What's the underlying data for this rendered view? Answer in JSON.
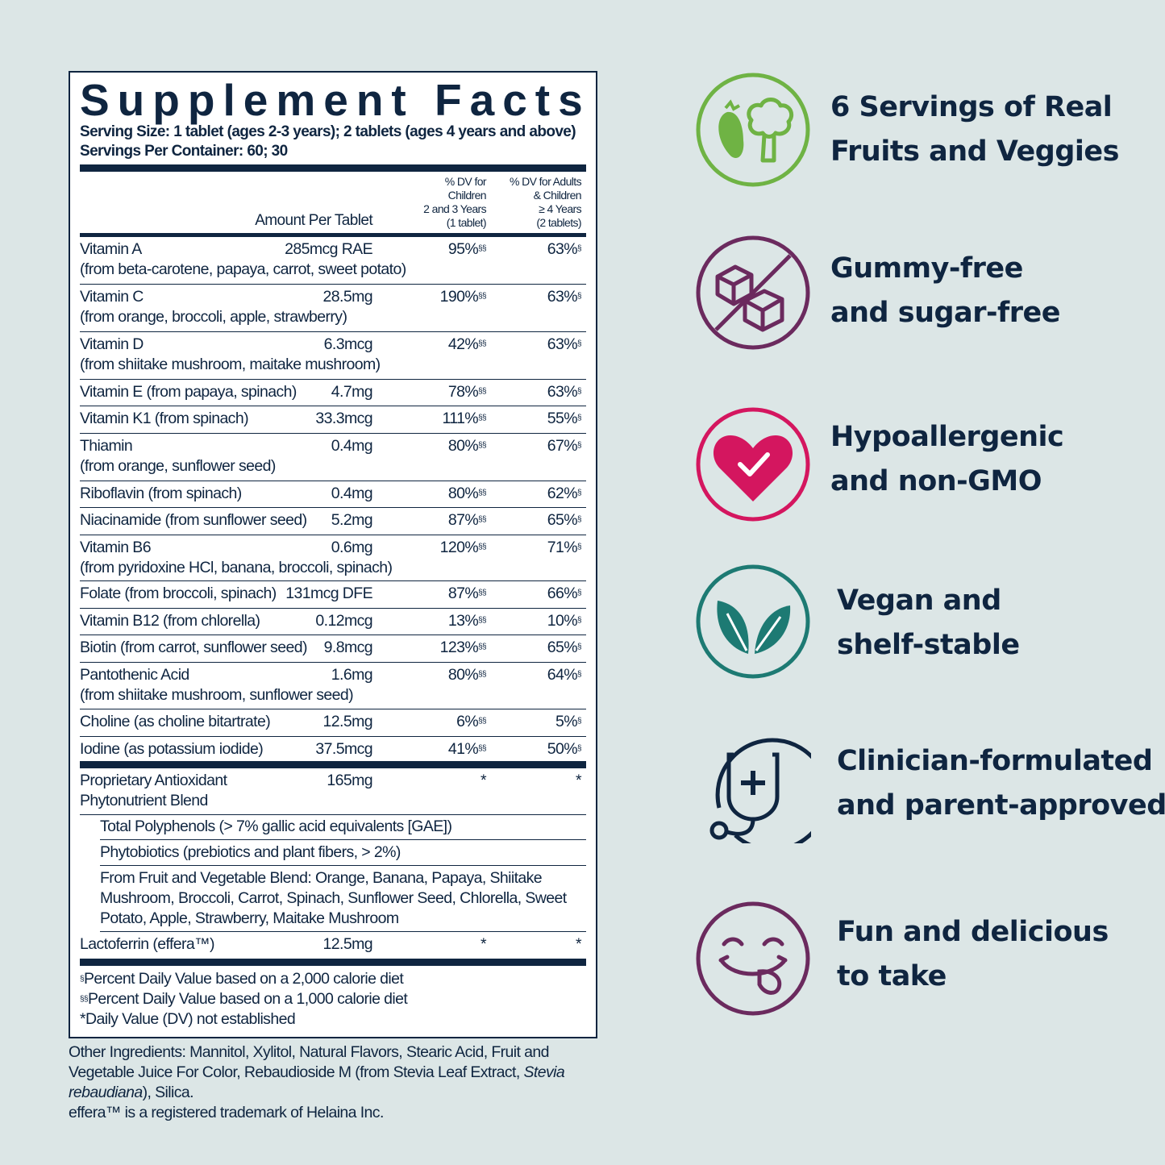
{
  "facts": {
    "title": "Supplement Facts",
    "serving_size": "Serving Size: 1 tablet (ages 2-3 years); 2 tablets (ages 4 years and above)",
    "servings_per_container": "Servings Per Container: 60; 30",
    "col_amount": "Amount Per Tablet",
    "col_dv_children": [
      "% DV for",
      "Children",
      "2 and 3 Years",
      "(1 tablet)"
    ],
    "col_dv_adults": [
      "% DV for Adults",
      "& Children",
      "≥ 4 Years",
      "(2 tablets)"
    ],
    "rows": [
      {
        "name": "Vitamin A",
        "source": "(from beta-carotene, papaya, carrot, sweet potato)",
        "amount": "285mcg RAE",
        "dv_children": "95%",
        "dv_adults": "63%"
      },
      {
        "name": "Vitamin C",
        "source": "(from orange, broccoli, apple, strawberry)",
        "amount": "28.5mg",
        "dv_children": "190%",
        "dv_adults": "63%"
      },
      {
        "name": "Vitamin D",
        "source": "(from shiitake mushroom, maitake mushroom)",
        "amount": "6.3mcg",
        "dv_children": "42%",
        "dv_adults": "63%"
      },
      {
        "name": "Vitamin E (from papaya, spinach)",
        "source": "",
        "amount": "4.7mg",
        "dv_children": "78%",
        "dv_adults": "63%"
      },
      {
        "name": "Vitamin K1 (from spinach)",
        "source": "",
        "amount": "33.3mcg",
        "dv_children": "111%",
        "dv_adults": "55%"
      },
      {
        "name": "Thiamin",
        "source": "(from orange, sunflower seed)",
        "amount": "0.4mg",
        "dv_children": "80%",
        "dv_adults": "67%"
      },
      {
        "name": "Riboflavin (from spinach)",
        "source": "",
        "amount": "0.4mg",
        "dv_children": "80%",
        "dv_adults": "62%"
      },
      {
        "name": "Niacinamide (from sunflower seed)",
        "source": "",
        "amount": "5.2mg",
        "dv_children": "87%",
        "dv_adults": "65%"
      },
      {
        "name": "Vitamin B6",
        "source": "(from pyridoxine HCl, banana, broccoli, spinach)",
        "amount": "0.6mg",
        "dv_children": "120%",
        "dv_adults": "71%"
      },
      {
        "name": "Folate (from broccoli, spinach)",
        "source": "",
        "amount": "131mcg DFE",
        "dv_children": "87%",
        "dv_adults": "66%"
      },
      {
        "name": "Vitamin B12 (from chlorella)",
        "source": "",
        "amount": "0.12mcg",
        "dv_children": "13%",
        "dv_adults": "10%"
      },
      {
        "name": "Biotin (from carrot, sunflower seed)",
        "source": "",
        "amount": "9.8mcg",
        "dv_children": "123%",
        "dv_adults": "65%"
      },
      {
        "name": "Pantothenic Acid",
        "source": "(from shiitake mushroom, sunflower seed)",
        "amount": "1.6mg",
        "dv_children": "80%",
        "dv_adults": "64%"
      },
      {
        "name": "Choline (as choline bitartrate)",
        "source": "",
        "amount": "12.5mg",
        "dv_children": "6%",
        "dv_adults": "5%"
      },
      {
        "name": "Iodine (as potassium iodide)",
        "source": "",
        "amount": "37.5mcg",
        "dv_children": "41%",
        "dv_adults": "50%"
      }
    ],
    "dv_children_mark": "§§",
    "dv_adults_mark": "§",
    "blend": {
      "name_line1": "Proprietary Antioxidant",
      "name_line2": "Phytonutrient Blend",
      "amount": "165mg",
      "dv_children": "*",
      "dv_adults": "*",
      "sub1": "Total Polyphenols (> 7% gallic acid equivalents [GAE])",
      "sub2": "Phytobiotics (prebiotics and plant fibers, > 2%)",
      "sub3": "From Fruit and Vegetable Blend: Orange, Banana, Papaya, Shiitake Mushroom, Broccoli, Carrot, Spinach, Sunflower Seed, Chlorella, Sweet Potato, Apple, Strawberry, Maitake Mushroom"
    },
    "lactoferrin": {
      "name": "Lactoferrin (effera™)",
      "amount": "12.5mg",
      "dv_children": "*",
      "dv_adults": "*"
    },
    "footnote_1_mark": "§",
    "footnote_1": "Percent Daily Value based on a 2,000 calorie diet",
    "footnote_2_mark": "§§",
    "footnote_2": "Percent Daily Value based on a 1,000 calorie diet",
    "footnote_3": "*Daily Value (DV) not established"
  },
  "other_ingredients": {
    "text_a": "Other Ingredients: Mannitol, Xylitol, Natural Flavors, Stearic Acid, Fruit and Vegetable Juice For Color, Rebaudioside M (from Stevia Leaf Extract, ",
    "text_italic": "Stevia rebaudiana",
    "text_b": "), Silica.",
    "trademark": "effera™ is a registered trademark of Helaina Inc."
  },
  "features": [
    {
      "line1": "6 Servings of Real",
      "line2": "Fruits and Veggies",
      "color": "#6fb344",
      "icon": "fruit-veggie-icon"
    },
    {
      "line1": "Gummy-free",
      "line2": "and sugar-free",
      "color": "#6b2a5e",
      "icon": "no-sugar-cubes-icon"
    },
    {
      "line1": "Hypoallergenic",
      "line2": "and non-GMO",
      "color": "#d4165f",
      "icon": "heart-check-icon"
    },
    {
      "line1": "Vegan and",
      "line2": "shelf-stable",
      "color": "#1d7a73",
      "icon": "leaves-icon"
    },
    {
      "line1": "Clinician-formulated",
      "line2": "and parent-approved",
      "color": "#0f2540",
      "icon": "stethoscope-icon"
    },
    {
      "line1": "Fun and delicious",
      "line2": "to take",
      "color": "#6b2a5e",
      "icon": "yummy-face-icon"
    }
  ]
}
